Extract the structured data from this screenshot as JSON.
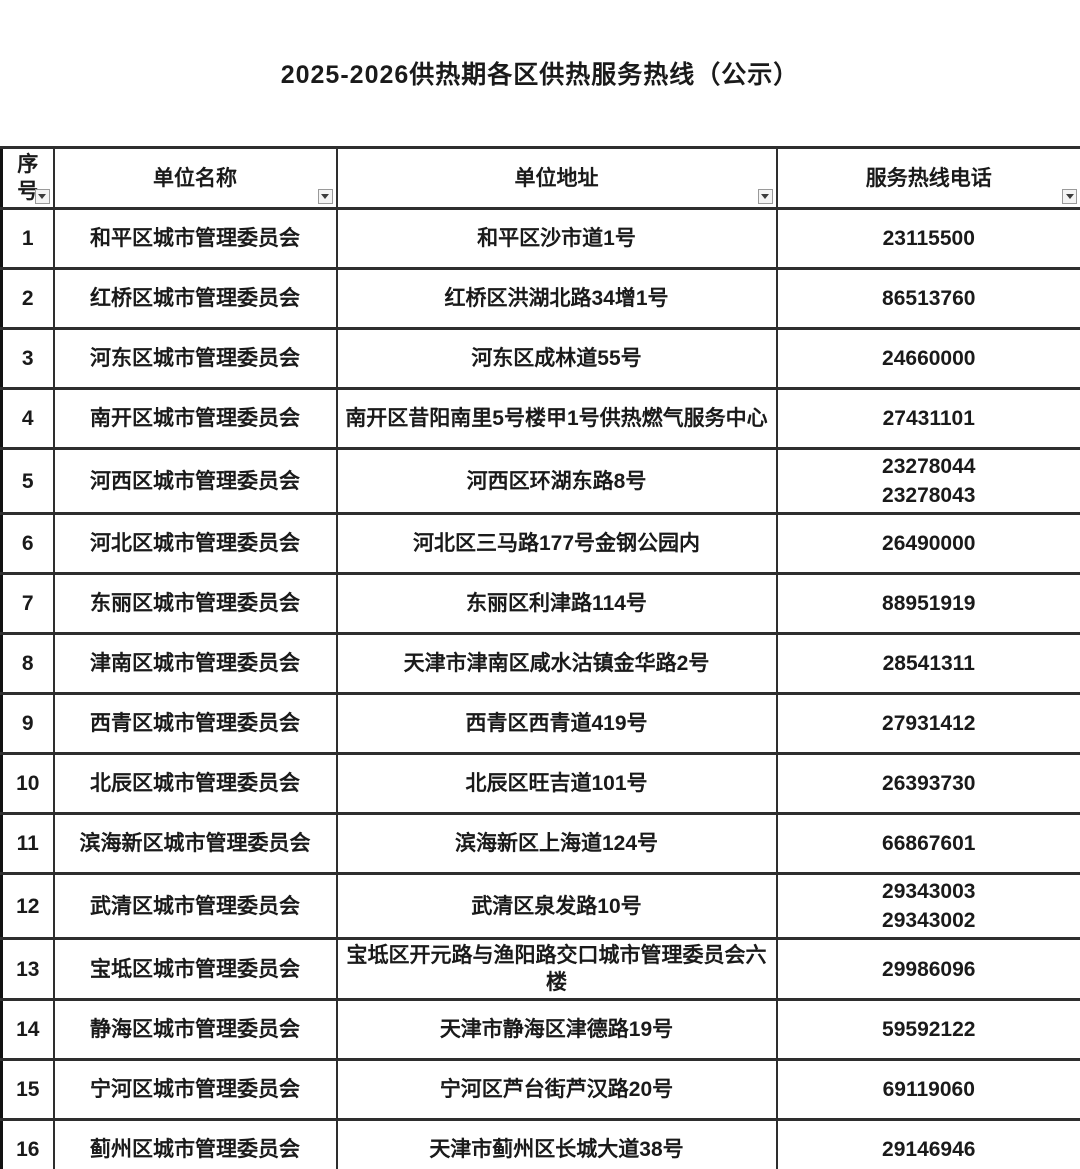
{
  "title": "2025-2026供热期各区供热服务热线（公示）",
  "colors": {
    "text": "#1a1a1a",
    "border_outer": "#111111",
    "border_inner": "#2e2e2e",
    "filter_button_bg": "#f4f4f4",
    "filter_button_border": "#9a9a9a"
  },
  "table": {
    "columns": [
      {
        "key": "index",
        "label": "序号",
        "has_filter": true
      },
      {
        "key": "name",
        "label": "单位名称",
        "has_filter": true
      },
      {
        "key": "address",
        "label": "单位地址",
        "has_filter": true
      },
      {
        "key": "phone",
        "label": "服务热线电话",
        "has_filter": true
      }
    ],
    "rows": [
      {
        "index": "1",
        "name": "和平区城市管理委员会",
        "address": "和平区沙市道1号",
        "phones": [
          "23115500"
        ]
      },
      {
        "index": "2",
        "name": "红桥区城市管理委员会",
        "address": "红桥区洪湖北路34增1号",
        "phones": [
          "86513760"
        ]
      },
      {
        "index": "3",
        "name": "河东区城市管理委员会",
        "address": "河东区成林道55号",
        "phones": [
          "24660000"
        ]
      },
      {
        "index": "4",
        "name": "南开区城市管理委员会",
        "address": "南开区昔阳南里5号楼甲1号供热燃气服务中心",
        "phones": [
          "27431101"
        ]
      },
      {
        "index": "5",
        "name": "河西区城市管理委员会",
        "address": "河西区环湖东路8号",
        "phones": [
          "23278044",
          "23278043"
        ]
      },
      {
        "index": "6",
        "name": "河北区城市管理委员会",
        "address": "河北区三马路177号金钢公园内",
        "phones": [
          "26490000"
        ]
      },
      {
        "index": "7",
        "name": "东丽区城市管理委员会",
        "address": "东丽区利津路114号",
        "phones": [
          "88951919"
        ]
      },
      {
        "index": "8",
        "name": "津南区城市管理委员会",
        "address": "天津市津南区咸水沽镇金华路2号",
        "phones": [
          "28541311"
        ]
      },
      {
        "index": "9",
        "name": "西青区城市管理委员会",
        "address": "西青区西青道419号",
        "phones": [
          "27931412"
        ]
      },
      {
        "index": "10",
        "name": "北辰区城市管理委员会",
        "address": "北辰区旺吉道101号",
        "phones": [
          "26393730"
        ]
      },
      {
        "index": "11",
        "name": "滨海新区城市管理委员会",
        "address": "滨海新区上海道124号",
        "phones": [
          "66867601"
        ]
      },
      {
        "index": "12",
        "name": "武清区城市管理委员会",
        "address": "武清区泉发路10号",
        "phones": [
          "29343003",
          "29343002"
        ]
      },
      {
        "index": "13",
        "name": "宝坻区城市管理委员会",
        "address": "宝坻区开元路与渔阳路交口城市管理委员会六楼",
        "phones": [
          "29986096"
        ]
      },
      {
        "index": "14",
        "name": "静海区城市管理委员会",
        "address": "天津市静海区津德路19号",
        "phones": [
          "59592122"
        ]
      },
      {
        "index": "15",
        "name": "宁河区城市管理委员会",
        "address": "宁河区芦台街芦汉路20号",
        "phones": [
          "69119060"
        ]
      },
      {
        "index": "16",
        "name": "蓟州区城市管理委员会",
        "address": "天津市蓟州区长城大道38号",
        "phones": [
          "29146946"
        ]
      }
    ]
  }
}
